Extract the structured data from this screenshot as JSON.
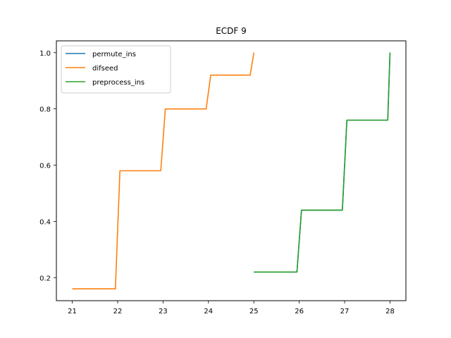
{
  "chart_data": {
    "type": "line",
    "title": "ECDF 9",
    "xlabel": "",
    "ylabel": "",
    "xlim": [
      20.65,
      28.35
    ],
    "ylim": [
      0.118,
      1.042
    ],
    "xticks": [
      21,
      22,
      23,
      24,
      25,
      26,
      27,
      28
    ],
    "yticks": [
      0.2,
      0.4,
      0.6,
      0.8,
      1.0
    ],
    "ytick_labels": [
      "0.2",
      "0.4",
      "0.6",
      "0.8",
      "1.0"
    ],
    "grid": false,
    "legend_position": "top-left",
    "series": [
      {
        "name": "permute_ins",
        "color": "#1f77b4",
        "x": [
          25.0,
          25.95,
          26.05,
          26.95,
          27.05,
          27.95,
          28.0
        ],
        "y": [
          0.22,
          0.22,
          0.44,
          0.44,
          0.76,
          0.76,
          1.0
        ]
      },
      {
        "name": "difseed",
        "color": "#ff7f0e",
        "x": [
          21.0,
          21.95,
          22.05,
          22.95,
          23.05,
          23.95,
          24.05,
          24.92,
          25.0
        ],
        "y": [
          0.16,
          0.16,
          0.58,
          0.58,
          0.8,
          0.8,
          0.92,
          0.92,
          1.0
        ]
      },
      {
        "name": "preprocess_ins",
        "color": "#2ca02c",
        "x": [
          25.0,
          25.95,
          26.05,
          26.95,
          27.05,
          27.95,
          28.0
        ],
        "y": [
          0.22,
          0.22,
          0.44,
          0.44,
          0.76,
          0.76,
          1.0
        ]
      }
    ]
  }
}
